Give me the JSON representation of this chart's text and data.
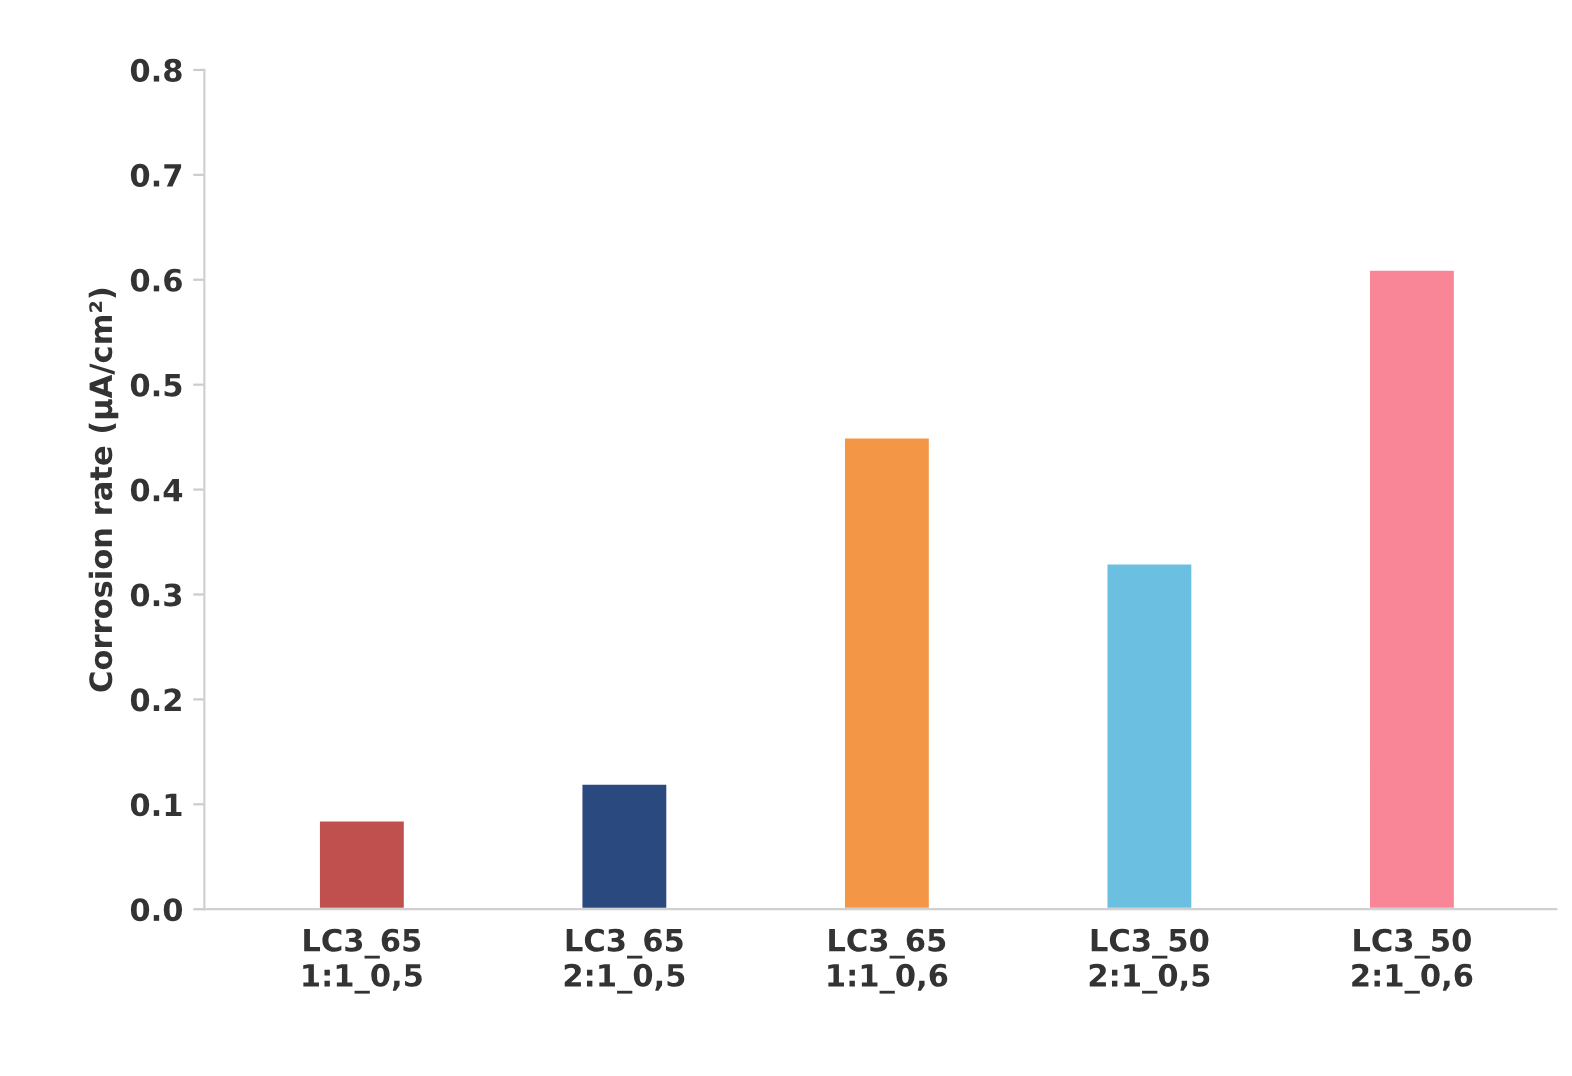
{
  "chart_data": {
    "type": "bar",
    "ylabel": "Corrosion rate (µA/cm²)",
    "categories": [
      "LC3_65\n1:1_0,5",
      "LC3_65\n2:1_0,5",
      "LC3_65\n1:1_0,6",
      "LC3_50\n2:1_0,5",
      "LC3_50\n2:1_0,6"
    ],
    "values": [
      0.085,
      0.12,
      0.45,
      0.33,
      0.61
    ],
    "colors": [
      "#c0504d",
      "#2a4a7f",
      "#f39646",
      "#6bc0e2",
      "#f88697"
    ],
    "ylim": [
      0,
      0.8
    ],
    "yticks": [
      {
        "value": 0,
        "label": "0.0"
      },
      0.1,
      0.2,
      0.3,
      0.4,
      0.5,
      0.6,
      0.7,
      0.8
    ],
    "grid": false,
    "legend": false
  }
}
